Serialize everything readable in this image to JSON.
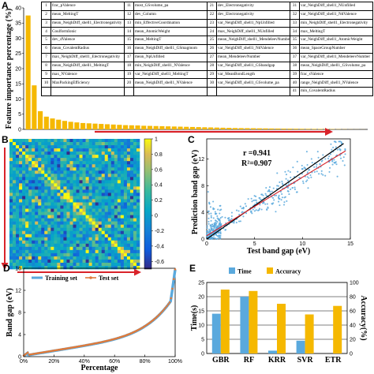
{
  "panels": {
    "a": "A",
    "b": "B",
    "c": "C",
    "d": "D",
    "e": "E"
  },
  "chart_data": [
    {
      "type": "bar",
      "panel": "A",
      "ylabel": "Feature importance percentage (%)",
      "ylim": [
        0,
        40
      ],
      "yticks": [
        0,
        5,
        10,
        15,
        20,
        25,
        30,
        35,
        40
      ],
      "values": [
        37.5,
        14.5,
        6.0,
        4.2,
        3.6,
        3.2,
        2.8,
        2.5,
        2.3,
        2.1,
        2.0,
        1.9,
        1.8,
        1.7,
        1.6,
        1.5,
        1.4,
        1.35,
        1.3,
        1.2,
        1.15,
        1.1,
        1.05,
        1.0,
        0.95,
        0.9,
        0.85,
        0.8,
        0.75,
        0.7,
        0.65,
        0.6,
        0.55,
        0.5,
        0.45,
        0.42,
        0.4,
        0.38,
        0.35,
        0.33,
        0.3,
        0.28,
        0.26,
        0.24,
        0.22,
        0.2,
        0.18,
        0.16,
        0.14,
        0.12,
        0.1,
        0.08,
        0.06,
        0.04,
        0.03,
        0.02
      ],
      "bar_color": "#f5b800",
      "table": [
        [
          "1",
          "frac_pValence",
          "11",
          "most_GSvolume_pa",
          "21",
          "dev_Electronegativity",
          "31",
          "var_NeighDiff_shell1_NUnfilled"
        ],
        [
          "2",
          "mean_MeltingT",
          "12",
          "dev_Column",
          "22",
          "dev_Electronegativity",
          "32",
          "var_NeighDiff_shell1_NdValence"
        ],
        [
          "3",
          "mean_NeighDiff_shell1_Electronegativity",
          "13",
          "min_EffectiveCoordination",
          "23",
          "var_NeighDiff_shell1_NpUnfilled",
          "33",
          "min_NeighDiff_shell1_Electronegativity"
        ],
        [
          "4",
          "CoulformIonic",
          "14",
          "mean_AtomicWeight",
          "24",
          "max_NeighDiff_shell1_NUnfilled",
          "34",
          "max_MeltingT"
        ],
        [
          "5",
          "dev_dValence",
          "15",
          "mean_MeltingT",
          "25",
          "mean_NeighDiff_shell1_MendeleevNumber",
          "35",
          "var_NeighDiff_shell1_AtomicWeight"
        ],
        [
          "6",
          "mean_CovalentRadius",
          "16",
          "mean_NeighDiff_shell1_GSmagmom",
          "26",
          "var_NeighDiff_shell1_NdValence",
          "36",
          "mean_SpaceGroupNumber"
        ],
        [
          "7",
          "max_NeighDiff_shell1_Electronegativity",
          "17",
          "mean_NpUnfilled",
          "27",
          "mean_MendeleevNumber",
          "37",
          "var_NeighDiff_shell1_MendeleevNumber"
        ],
        [
          "8",
          "mean_NeighDiff_shell1_MeltingT",
          "18",
          "min_NeighDiff_shell1_NValence",
          "28",
          "var_NeighDiff_shell1_GSbandgap",
          "38",
          "mean_NeighDiff_shell1_GSvolume_pa"
        ],
        [
          "9",
          "max_NValence",
          "19",
          "var_NeighDiff_shell1_MeltingT",
          "29",
          "var_MeanBondLength",
          "39",
          "frac_sValence"
        ],
        [
          "10",
          "MaxPackingEfficiency",
          "20",
          "mean_NeighDiff_shell1_NValence",
          "30",
          "var_NeighDiff_shell1_GSvolume_pa",
          "40",
          "range_NeighDiff_shell1_NValence"
        ],
        [
          "",
          "",
          "",
          "",
          "",
          "",
          "41",
          "min_CovalentRadius"
        ]
      ]
    },
    {
      "type": "heatmap",
      "panel": "B",
      "colorbar_ticks": [
        "1",
        "0.8",
        "0.6",
        "0.4",
        "0.2",
        "0",
        "-0.2",
        "-0.4",
        "-0.6"
      ],
      "range": [
        -0.7,
        1
      ]
    },
    {
      "type": "scatter",
      "panel": "C",
      "xlabel": "Test band gap (eV)",
      "ylabel": "Prediction band gap (eV)",
      "xlim": [
        0,
        15
      ],
      "ylim": [
        0,
        15
      ],
      "xticks": [
        "0",
        "5",
        "10",
        "15"
      ],
      "yticks": [
        "0",
        "4",
        "8",
        "12"
      ],
      "annotation_r": "r =0.941",
      "annotation_r2": "R²=0.907",
      "point_color": "#5aa9dd"
    },
    {
      "type": "line",
      "panel": "D",
      "xlabel": "Percentage",
      "ylabel": "Band gap (eV)",
      "xlim": [
        0,
        100
      ],
      "ylim": [
        0,
        16
      ],
      "xticks": [
        "0%",
        "20%",
        "40%",
        "60%",
        "80%",
        "100%"
      ],
      "yticks": [
        "0",
        "4",
        "8",
        "12",
        "16"
      ],
      "series": [
        {
          "name": "Training set",
          "color": "#5aa9dd"
        },
        {
          "name": "Test set",
          "color": "#e07a3a"
        }
      ]
    },
    {
      "type": "bar",
      "panel": "E",
      "categories": [
        "GBR",
        "RF",
        "KRR",
        "SVR",
        "ETR"
      ],
      "ylabel": "Time(s)",
      "ylabel_right": "Accuracy(%)",
      "ylim": [
        0,
        25
      ],
      "ylim_right": [
        0,
        100
      ],
      "yticks": [
        "0",
        "5",
        "10",
        "15",
        "20",
        "25"
      ],
      "yticks_right": [
        "0",
        "20",
        "40",
        "60",
        "80",
        "100"
      ],
      "series": [
        {
          "name": "Time",
          "color": "#5aa9dd",
          "values": [
            14,
            20,
            1,
            4.5,
            0
          ]
        },
        {
          "name": "Accuracy",
          "color": "#f5b800",
          "values": [
            90,
            88,
            70,
            55,
            67
          ]
        }
      ]
    }
  ]
}
